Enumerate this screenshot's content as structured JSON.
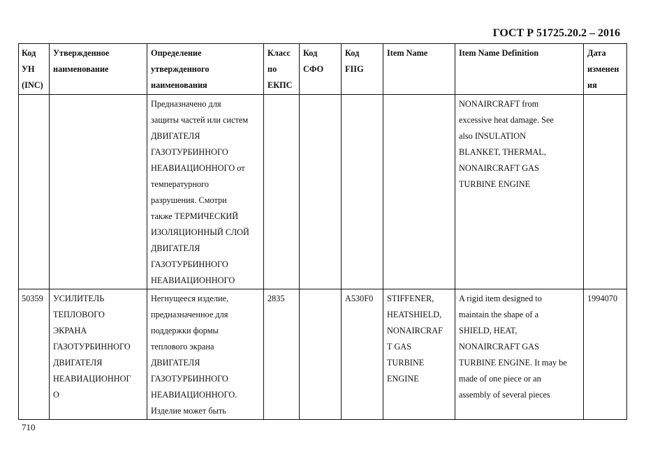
{
  "header": {
    "title": "ГОСТ Р 51725.20.2 – 2016"
  },
  "footer": {
    "page_number": "710"
  },
  "table": {
    "columns": [
      "Код\nУН\n(INC)",
      "Утвержденное\nнаименование",
      "Определение\nутвержденного\nнаименования",
      "Класс\nпо\nЕКПС",
      "Код\nСФО",
      "Код\nFIIG",
      "Item Name",
      "Item Name Definition",
      "Дата\nизменен\nия"
    ],
    "rows": [
      [
        "",
        "",
        "Предназначено для\nзащиты частей или систем\nДВИГАТЕЛЯ\nГАЗОТУРБИННОГО\nНЕАВИАЦИОННОГО от\nтемпературного\nразрушения. Смотри\nтакже ТЕРМИЧЕСКИЙ\nИЗОЛЯЦИОННЫЙ СЛОЙ\nДВИГАТЕЛЯ\nГАЗОТУРБИННОГО\nНЕАВИАЦИОННОГО",
        "",
        "",
        "",
        "",
        "NONAIRCRAFT from\nexcessive heat damage.  See\nalso INSULATION\nBLANKET, THERMAL,\nNONAIRCRAFT GAS\nTURBINE ENGINE",
        ""
      ],
      [
        "50359",
        "УСИЛИТЕЛЬ\nТЕПЛОВОГО\nЭКРАНА\nГАЗОТУРБИННОГО\nДВИГАТЕЛЯ\nНЕАВИАЦИОННОГ\nО",
        "Негнущееся изделие,\nпредназначенное для\nподдержки формы\nтеплового экрана\nДВИГАТЕЛЯ\nГАЗОТУРБИННОГО\nНЕАВИАЦИОННОГО.\nИзделие может быть",
        "2835",
        "",
        "A530F0",
        "STIFFENER,\nHEATSHIELD,\nNONAIRCRAF\nT GAS\nTURBINE\nENGINE",
        "A rigid item designed to\nmaintain the shape of a\nSHIELD, HEAT,\nNONAIRCRAFT GAS\nTURBINE ENGINE.  It may be\nmade of one piece or an\nassembly of several pieces",
        "1994070"
      ]
    ]
  }
}
